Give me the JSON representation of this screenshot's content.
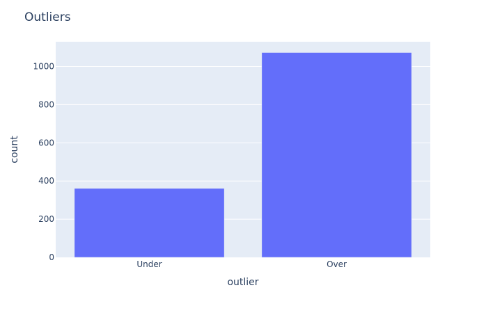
{
  "chart_data": {
    "type": "bar",
    "title": "Outliers",
    "xlabel": "outlier",
    "ylabel": "count",
    "categories": [
      "Under",
      "Over"
    ],
    "values": [
      361,
      1073
    ],
    "ylim": [
      0,
      1129.5
    ],
    "yticks": [
      0,
      200,
      400,
      600,
      800,
      1000
    ],
    "grid": true,
    "bar_color": "#636efa",
    "plot_bg": "#e5ecf6",
    "grid_color": "#ffffff",
    "text_color": "#2a3f5f"
  }
}
